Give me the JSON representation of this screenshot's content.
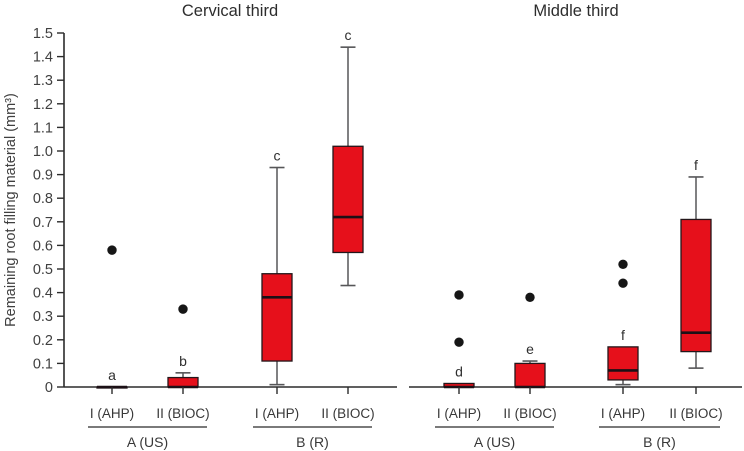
{
  "colors": {
    "box_fill": "#e6101b",
    "box_stroke": "#24161a",
    "median_line": "#1c1016",
    "whisker": "#565658",
    "axis": "#2b2b2b",
    "outlier_dot": "#161616"
  },
  "chart_data": {
    "type": "boxplot",
    "ylabel": "Remaining root filling material (mm³)",
    "ylim": [
      0,
      1.5
    ],
    "ytick_step": 0.1,
    "ytick_labels": [
      "0",
      "0.1",
      "0.2",
      "0.3",
      "0.4",
      "0.5",
      "0.6",
      "0.7",
      "0.8",
      "0.9",
      "1.0",
      "1.1",
      "1.2",
      "1.3",
      "1.4",
      "1.5"
    ],
    "grid": false,
    "panels": [
      {
        "title": "Cervical third",
        "groups": [
          {
            "label": "A (US)",
            "boxes": [
              {
                "label": "I (AHP)",
                "letter": "a",
                "whisker_low": 0,
                "q1": 0,
                "median": 0,
                "q3": 0,
                "whisker_high": 0,
                "outliers": [
                  0.58
                ]
              },
              {
                "label": "II (BIOC)",
                "letter": "b",
                "whisker_low": 0,
                "q1": 0,
                "median": 0,
                "q3": 0.04,
                "whisker_high": 0.06,
                "outliers": [
                  0.33
                ]
              }
            ]
          },
          {
            "label": "B (R)",
            "boxes": [
              {
                "label": "I (AHP)",
                "letter": "c",
                "whisker_low": 0.01,
                "q1": 0.11,
                "median": 0.38,
                "q3": 0.48,
                "whisker_high": 0.93,
                "outliers": []
              },
              {
                "label": "II (BIOC)",
                "letter": "c",
                "whisker_low": 0.43,
                "q1": 0.57,
                "median": 0.72,
                "q3": 1.02,
                "whisker_high": 1.44,
                "outliers": []
              }
            ]
          }
        ]
      },
      {
        "title": "Middle third",
        "groups": [
          {
            "label": "A (US)",
            "boxes": [
              {
                "label": "I (AHP)",
                "letter": "d",
                "whisker_low": 0,
                "q1": 0,
                "median": 0,
                "q3": 0.015,
                "whisker_high": 0.015,
                "outliers": [
                  0.19,
                  0.39
                ]
              },
              {
                "label": "II (BIOC)",
                "letter": "e",
                "whisker_low": 0,
                "q1": 0,
                "median": 0,
                "q3": 0.1,
                "whisker_high": 0.11,
                "outliers": [
                  0.38
                ]
              }
            ]
          },
          {
            "label": "B (R)",
            "boxes": [
              {
                "label": "I (AHP)",
                "letter": "f",
                "whisker_low": 0.01,
                "q1": 0.03,
                "median": 0.07,
                "q3": 0.17,
                "whisker_high": 0.17,
                "outliers": [
                  0.44,
                  0.52
                ]
              },
              {
                "label": "II (BIOC)",
                "letter": "f",
                "whisker_low": 0.08,
                "q1": 0.15,
                "median": 0.23,
                "q3": 0.71,
                "whisker_high": 0.89,
                "outliers": []
              }
            ]
          }
        ]
      }
    ]
  }
}
